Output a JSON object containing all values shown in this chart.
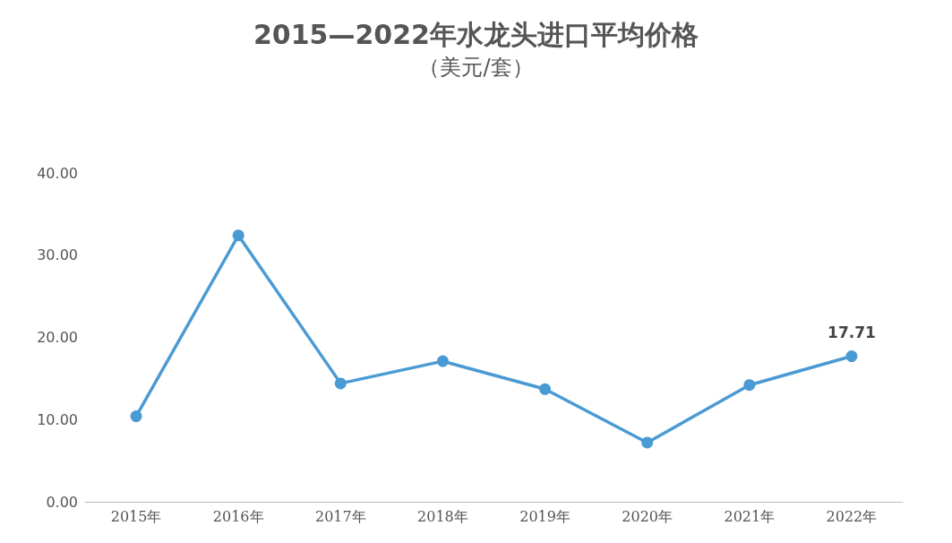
{
  "chart_data": {
    "type": "line",
    "title": "2015—2022年水龙头进口平均价格",
    "subtitle": "（美元/套）",
    "categories": [
      "2015年",
      "2016年",
      "2017年",
      "2018年",
      "2019年",
      "2020年",
      "2021年",
      "2022年"
    ],
    "series": [
      {
        "color": "#4a9ad4",
        "values": [
          10.4,
          32.4,
          14.4,
          17.1,
          13.7,
          7.2,
          14.2,
          17.71
        ],
        "value_labels": [
          null,
          null,
          null,
          null,
          null,
          null,
          null,
          "17.71"
        ]
      }
    ],
    "ylim": [
      0,
      40
    ],
    "yticks": [
      {
        "value": 0,
        "label": "0.00"
      },
      {
        "value": 10,
        "label": "10.00"
      },
      {
        "value": 20,
        "label": "20.00"
      },
      {
        "value": 30,
        "label": "30.00"
      },
      {
        "value": 40,
        "label": "40.00"
      }
    ],
    "grid": false,
    "marker": "circle",
    "line_style": "solid"
  }
}
